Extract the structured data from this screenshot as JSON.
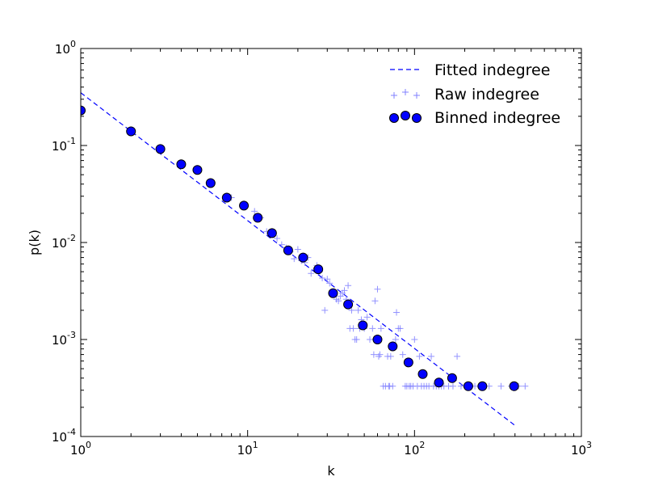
{
  "chart_data": {
    "type": "scatter",
    "title": "",
    "xlabel": "k",
    "ylabel": "p(k)",
    "xscale": "log",
    "yscale": "log",
    "xlim": [
      1,
      1000
    ],
    "ylim": [
      0.0001,
      1
    ],
    "grid": false,
    "legend_position": "top-right",
    "x_ticks": [
      {
        "base": "10",
        "exp": "0"
      },
      {
        "base": "10",
        "exp": "1"
      },
      {
        "base": "10",
        "exp": "2"
      },
      {
        "base": "10",
        "exp": "3"
      }
    ],
    "y_ticks": [
      {
        "base": "10",
        "exp": "-4"
      },
      {
        "base": "10",
        "exp": "-3"
      },
      {
        "base": "10",
        "exp": "-2"
      },
      {
        "base": "10",
        "exp": "-1"
      },
      {
        "base": "10",
        "exp": "0"
      }
    ],
    "colors": {
      "fit": "#0000ff",
      "raw": "#8080ff",
      "binned_fill": "#0000ff",
      "binned_edge": "#000000"
    },
    "series": [
      {
        "name": "Fitted indegree",
        "style": "dashed-line",
        "x": [
          1,
          400
        ],
        "y": [
          0.35,
          0.00013
        ]
      },
      {
        "name": "Raw indegree",
        "style": "plus-marker",
        "points": [
          [
            8,
            0.029
          ],
          [
            9.5,
            0.024
          ],
          [
            11,
            0.021
          ],
          [
            12,
            0.018
          ],
          [
            13,
            0.013
          ],
          [
            14,
            0.012
          ],
          [
            15,
            0.011
          ],
          [
            16,
            0.0095
          ],
          [
            17,
            0.0088
          ],
          [
            18,
            0.008
          ],
          [
            19,
            0.0068
          ],
          [
            20,
            0.0085
          ],
          [
            21,
            0.0065
          ],
          [
            22,
            0.0062
          ],
          [
            23,
            0.007
          ],
          [
            24,
            0.0048
          ],
          [
            26,
            0.0058
          ],
          [
            27,
            0.005
          ],
          [
            28,
            0.0043
          ],
          [
            29,
            0.002
          ],
          [
            30,
            0.0042
          ],
          [
            31,
            0.0038
          ],
          [
            33,
            0.003
          ],
          [
            34,
            0.0026
          ],
          [
            35,
            0.0025
          ],
          [
            36,
            0.0028
          ],
          [
            37,
            0.003
          ],
          [
            38,
            0.0032
          ],
          [
            39,
            0.0026
          ],
          [
            40,
            0.0036
          ],
          [
            41,
            0.0013
          ],
          [
            42,
            0.002
          ],
          [
            43,
            0.0013
          ],
          [
            44,
            0.001
          ],
          [
            45,
            0.001
          ],
          [
            46,
            0.002
          ],
          [
            47,
            0.0013
          ],
          [
            48,
            0.0016
          ],
          [
            50,
            0.0013
          ],
          [
            52,
            0.0017
          ],
          [
            54,
            0.001
          ],
          [
            56,
            0.0013
          ],
          [
            57,
            0.0007
          ],
          [
            58,
            0.0025
          ],
          [
            60,
            0.0033
          ],
          [
            61,
            0.00067
          ],
          [
            62,
            0.0007
          ],
          [
            63,
            0.0013
          ],
          [
            65,
            0.00033
          ],
          [
            67,
            0.00033
          ],
          [
            69,
            0.00067
          ],
          [
            70,
            0.00033
          ],
          [
            71,
            0.00033
          ],
          [
            72,
            0.00067
          ],
          [
            74,
            0.00033
          ],
          [
            77,
            0.001
          ],
          [
            78,
            0.0019
          ],
          [
            80,
            0.0013
          ],
          [
            82,
            0.0013
          ],
          [
            85,
            0.0007
          ],
          [
            88,
            0.00033
          ],
          [
            90,
            0.00033
          ],
          [
            93,
            0.00033
          ],
          [
            95,
            0.00033
          ],
          [
            98,
            0.00033
          ],
          [
            100,
            0.001
          ],
          [
            104,
            0.00033
          ],
          [
            107,
            0.00067
          ],
          [
            110,
            0.00033
          ],
          [
            114,
            0.00033
          ],
          [
            118,
            0.00033
          ],
          [
            122,
            0.00033
          ],
          [
            126,
            0.00067
          ],
          [
            130,
            0.00033
          ],
          [
            135,
            0.00033
          ],
          [
            140,
            0.00033
          ],
          [
            145,
            0.00033
          ],
          [
            150,
            0.00033
          ],
          [
            160,
            0.00033
          ],
          [
            170,
            0.00033
          ],
          [
            180,
            0.00067
          ],
          [
            190,
            0.00033
          ],
          [
            210,
            0.00033
          ],
          [
            230,
            0.00033
          ],
          [
            250,
            0.00033
          ],
          [
            280,
            0.00033
          ],
          [
            330,
            0.00033
          ],
          [
            380,
            0.00033
          ],
          [
            420,
            0.00033
          ],
          [
            460,
            0.00033
          ]
        ]
      },
      {
        "name": "Binned indegree",
        "style": "circle-marker",
        "points": [
          [
            1,
            0.23
          ],
          [
            2,
            0.14
          ],
          [
            3,
            0.092
          ],
          [
            4,
            0.064
          ],
          [
            5,
            0.056
          ],
          [
            6,
            0.041
          ],
          [
            7.5,
            0.029
          ],
          [
            9.5,
            0.024
          ],
          [
            11.5,
            0.018
          ],
          [
            14,
            0.0125
          ],
          [
            17.5,
            0.0083
          ],
          [
            21.5,
            0.007
          ],
          [
            26.5,
            0.0053
          ],
          [
            32.5,
            0.003
          ],
          [
            40,
            0.0023
          ],
          [
            49,
            0.0014
          ],
          [
            60,
            0.001
          ],
          [
            74,
            0.00085
          ],
          [
            92,
            0.00058
          ],
          [
            112,
            0.00044
          ],
          [
            140,
            0.00036
          ],
          [
            168,
            0.0004
          ],
          [
            210,
            0.00033
          ],
          [
            255,
            0.00033
          ],
          [
            395,
            0.00033
          ]
        ]
      }
    ]
  }
}
